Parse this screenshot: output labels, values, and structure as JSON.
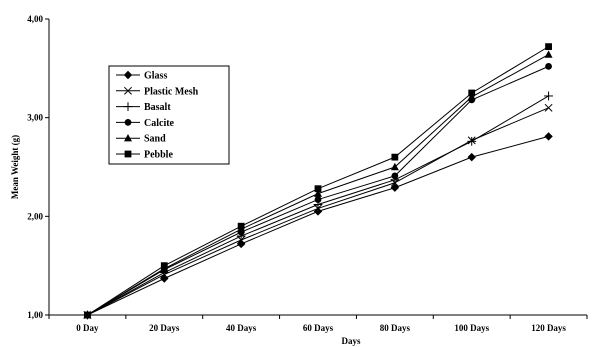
{
  "chart_data": {
    "type": "line",
    "title": "",
    "xlabel": "Days",
    "ylabel": "Mean Weight (g)",
    "categories": [
      "0 Day",
      "20 Days",
      "40 Days",
      "60 Days",
      "80 Days",
      "100 Days",
      "120 Days"
    ],
    "ylim": [
      1.0,
      4.0
    ],
    "yticks": [
      "1,00",
      "2,00",
      "3,00",
      "4,00"
    ],
    "grid": false,
    "legend_position": "top-left",
    "series": [
      {
        "name": "Glass",
        "marker": "diamond",
        "values": [
          1.0,
          1.37,
          1.72,
          2.05,
          2.29,
          2.6,
          2.81
        ]
      },
      {
        "name": "Plastic Mesh",
        "marker": "x",
        "values": [
          1.0,
          1.41,
          1.76,
          2.08,
          2.34,
          2.77,
          3.1
        ]
      },
      {
        "name": "Basalt",
        "marker": "plus",
        "values": [
          1.0,
          1.43,
          1.8,
          2.12,
          2.37,
          2.76,
          3.22
        ]
      },
      {
        "name": "Calcite",
        "marker": "circle",
        "values": [
          1.0,
          1.46,
          1.84,
          2.17,
          2.41,
          3.18,
          3.52
        ]
      },
      {
        "name": "Sand",
        "marker": "triangle",
        "values": [
          1.0,
          1.47,
          1.87,
          2.23,
          2.5,
          3.21,
          3.64
        ]
      },
      {
        "name": "Pebble",
        "marker": "square",
        "values": [
          1.0,
          1.5,
          1.9,
          2.28,
          2.6,
          3.25,
          3.72
        ]
      }
    ]
  }
}
